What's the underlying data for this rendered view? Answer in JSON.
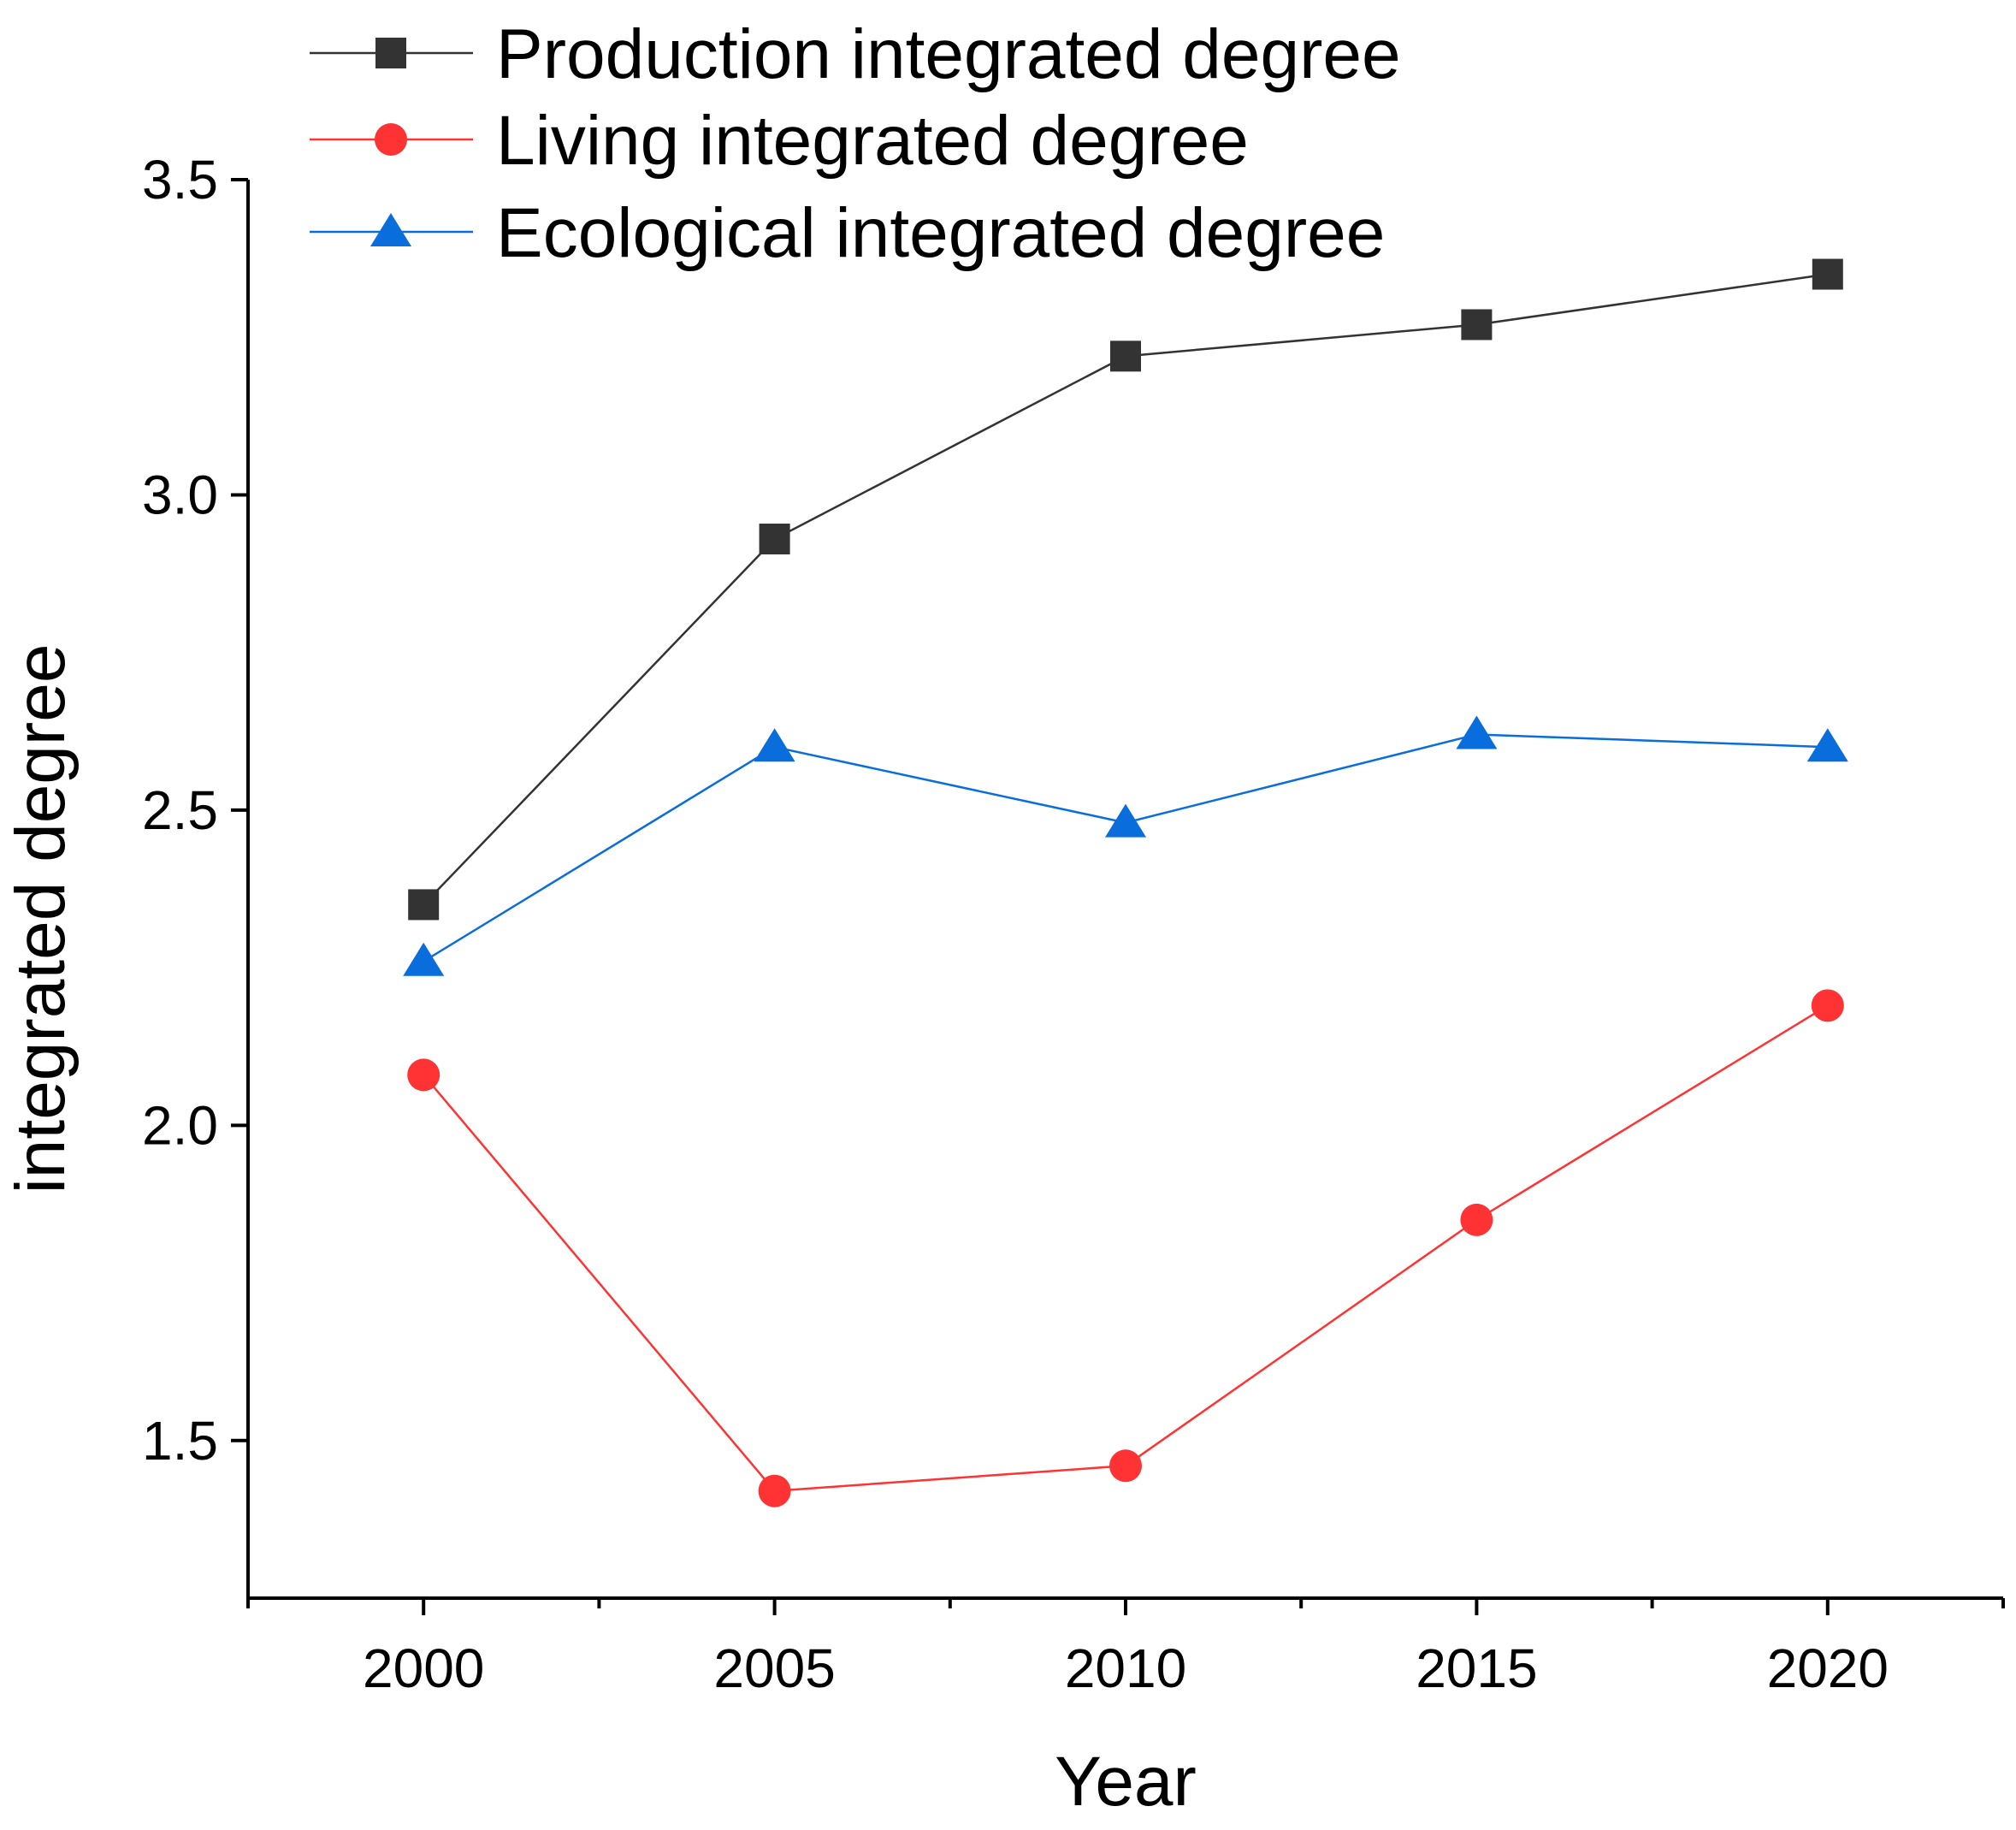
{
  "chart_data": {
    "type": "line",
    "title": "",
    "xlabel": "Year",
    "ylabel": "integrated degree",
    "x": [
      2000,
      2005,
      2010,
      2015,
      2020
    ],
    "xlim": [
      1997.5,
      2022.5
    ],
    "ylim": [
      1.25,
      3.5
    ],
    "x_major_ticks": [
      2000,
      2005,
      2010,
      2015,
      2020
    ],
    "x_minor_ticks": [
      1997.5,
      2002.5,
      2007.5,
      2012.5,
      2017.5,
      2022.5
    ],
    "y_major_ticks": [
      1.5,
      2.0,
      2.5,
      3.0,
      3.5
    ],
    "x_tick_labels": [
      "2000",
      "2005",
      "2010",
      "2015",
      "2020"
    ],
    "y_tick_labels": [
      "1.5",
      "2.0",
      "2.5",
      "3.0",
      "3.5"
    ],
    "grid": false,
    "legend_position": "top-left",
    "series": [
      {
        "name": "Production integrated degree",
        "values": [
          2.35,
          2.93,
          3.22,
          3.27,
          3.35
        ],
        "color": "#333333",
        "marker": "square"
      },
      {
        "name": "Living integrated degree",
        "values": [
          2.08,
          1.42,
          1.46,
          1.85,
          2.19
        ],
        "color": "#ff3333",
        "marker": "circle"
      },
      {
        "name": "Ecological integrated degree",
        "values": [
          2.26,
          2.6,
          2.48,
          2.62,
          2.6
        ],
        "color": "#0a6ddc",
        "marker": "triangle"
      }
    ]
  }
}
